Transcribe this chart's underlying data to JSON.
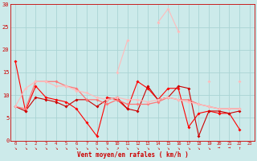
{
  "xlim": [
    -0.5,
    23.5
  ],
  "ylim": [
    0,
    30
  ],
  "yticks": [
    0,
    5,
    10,
    15,
    20,
    25,
    30
  ],
  "xticks": [
    0,
    1,
    2,
    3,
    4,
    5,
    6,
    7,
    8,
    9,
    10,
    11,
    12,
    13,
    14,
    15,
    16,
    17,
    18,
    19,
    20,
    21,
    22,
    23
  ],
  "bg_color": "#cceaea",
  "grid_color": "#aad4d4",
  "lines": [
    {
      "x": [
        0,
        1,
        2,
        3,
        4,
        5,
        6,
        7,
        8,
        9,
        10,
        11,
        12,
        13,
        14,
        15,
        16,
        17,
        18,
        19,
        20,
        21,
        22
      ],
      "y": [
        17.5,
        6.5,
        12,
        9.5,
        9,
        8.5,
        7,
        4,
        1,
        9.5,
        9,
        7,
        13,
        11.5,
        9,
        11.5,
        11.5,
        3,
        6,
        6.5,
        6,
        6,
        2.5
      ],
      "color": "#ff0000",
      "lw": 0.8,
      "marker": "D",
      "ms": 2.0
    },
    {
      "x": [
        0,
        1,
        2,
        3,
        4,
        5,
        6,
        7,
        8,
        9,
        10,
        11,
        12,
        13,
        14,
        15,
        16,
        17,
        18,
        19,
        20,
        21,
        22
      ],
      "y": [
        7.5,
        6.5,
        9.5,
        9,
        8.5,
        7.5,
        9,
        9,
        7.5,
        9,
        9.5,
        7,
        6.5,
        12,
        9,
        9.5,
        12,
        11.5,
        1,
        6.5,
        6.5,
        6,
        6.5
      ],
      "color": "#cc0000",
      "lw": 0.8,
      "marker": "D",
      "ms": 2.0
    },
    {
      "x": [
        0,
        1,
        2,
        3,
        4,
        5,
        6,
        7,
        8,
        9,
        10,
        11,
        12,
        13,
        14,
        15,
        16,
        17,
        18,
        19,
        20,
        21,
        22
      ],
      "y": [
        7.5,
        7,
        13,
        13,
        13,
        12,
        11.5,
        9,
        9,
        8,
        9,
        8,
        8,
        8,
        8.5,
        9.5,
        9,
        9,
        8,
        7.5,
        7,
        7,
        7
      ],
      "color": "#ff8888",
      "lw": 1.0,
      "marker": "D",
      "ms": 2.0
    },
    {
      "x": [
        0,
        1,
        2,
        3,
        4,
        5,
        6,
        7,
        8,
        9,
        10,
        11,
        12,
        13,
        14,
        15,
        16,
        17,
        18,
        19,
        20,
        21,
        22
      ],
      "y": [
        7.5,
        11.5,
        13,
        13,
        12,
        12,
        11,
        10.5,
        9.5,
        9,
        9.5,
        9,
        9,
        8.5,
        9,
        9.5,
        9,
        8.5,
        8,
        7.5,
        7,
        7,
        7
      ],
      "color": "#ffbbbb",
      "lw": 1.0,
      "marker": "D",
      "ms": 2.0
    },
    {
      "x": [
        10,
        11,
        14,
        15,
        16,
        19,
        22
      ],
      "y": [
        15,
        22,
        26,
        29,
        24,
        13,
        13
      ],
      "color": "#ffaaaa",
      "lw": 0.8,
      "marker": "D",
      "ms": 2.0,
      "connect_all": false
    }
  ],
  "arrow_chars": [
    "↘",
    "↘",
    "↘",
    "↘",
    "↘",
    "↘",
    "↘",
    "↘",
    "↘",
    "↘",
    "↗",
    "↘",
    "↘",
    "↘",
    "↘",
    "↘",
    "↘",
    "↘",
    "↘",
    "↘",
    "→",
    "→",
    "↑",
    ""
  ]
}
